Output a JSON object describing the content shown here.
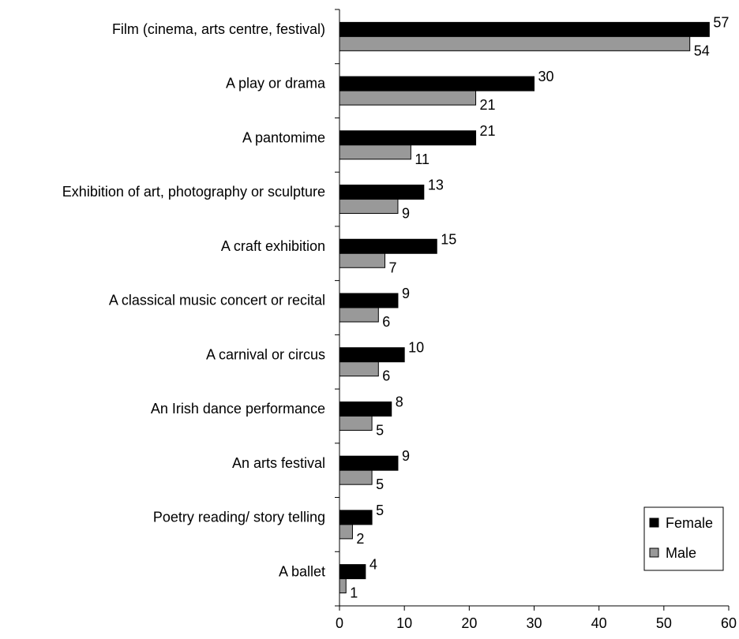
{
  "chart_data": {
    "type": "bar",
    "orientation": "horizontal",
    "categories": [
      "Film (cinema, arts centre, festival)",
      "A play or drama",
      "A pantomime",
      "Exhibition of art, photography or sculpture",
      "A craft exhibition",
      "A classical music concert or recital",
      "A carnival or circus",
      "An Irish dance performance",
      "An arts festival",
      "Poetry reading/ story telling",
      "A ballet"
    ],
    "series": [
      {
        "name": "Female",
        "color": "#000000",
        "values": [
          57,
          30,
          21,
          13,
          15,
          9,
          10,
          8,
          9,
          5,
          4
        ]
      },
      {
        "name": "Male",
        "color": "#999999",
        "values": [
          54,
          21,
          11,
          9,
          7,
          6,
          6,
          5,
          5,
          2,
          1
        ]
      }
    ],
    "xlim": [
      0,
      60
    ],
    "xticks": [
      "0",
      "10",
      "20",
      "30",
      "40",
      "50",
      "60"
    ],
    "grid": false,
    "legend": {
      "position": "bottom-right",
      "entries": [
        "Female",
        "Male"
      ]
    }
  }
}
